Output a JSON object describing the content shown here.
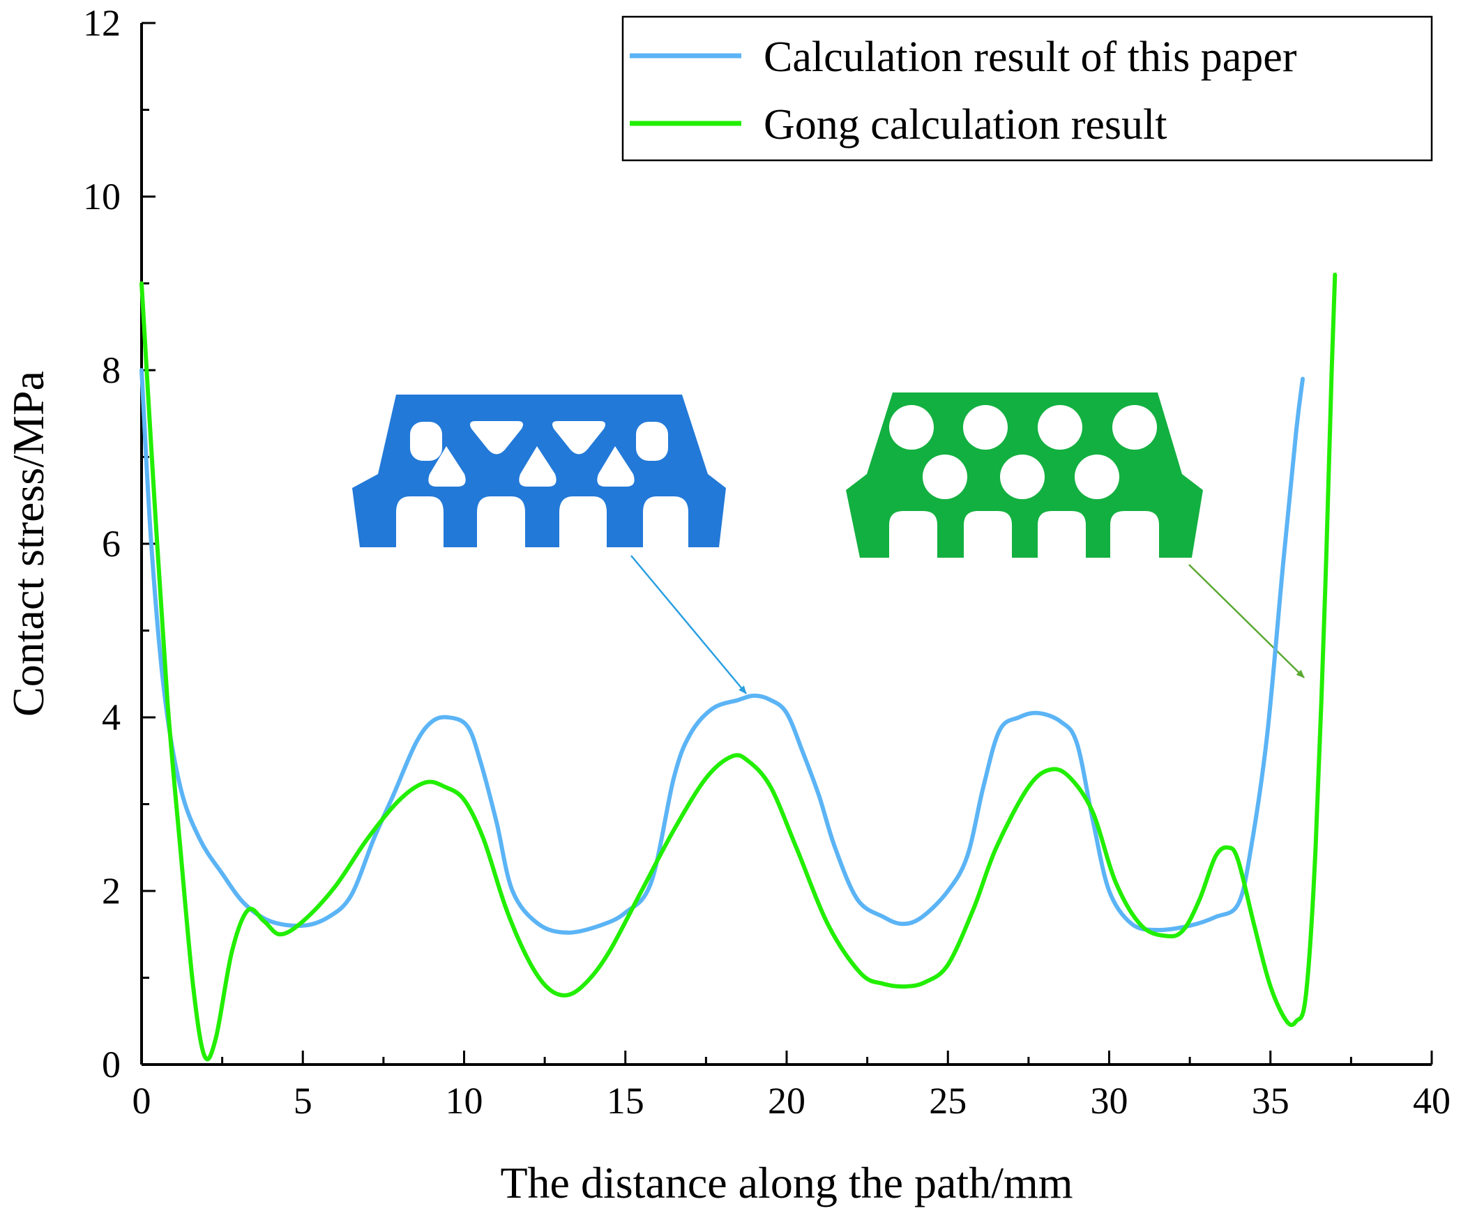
{
  "chart_data": {
    "type": "line",
    "title": "",
    "xlabel": "The distance along the path/mm",
    "ylabel": "Contact stress/MPa",
    "xlim": [
      0,
      40
    ],
    "ylim": [
      0,
      12
    ],
    "x_ticks": [
      0,
      5,
      10,
      15,
      20,
      25,
      30,
      35,
      40
    ],
    "y_ticks": [
      0,
      2,
      4,
      6,
      8,
      10,
      12
    ],
    "x_tick_labels": [
      "0",
      "5",
      "10",
      "15",
      "20",
      "25",
      "30",
      "35",
      "40"
    ],
    "y_tick_labels": [
      "0",
      "2",
      "4",
      "6",
      "8",
      "10",
      "12"
    ],
    "grid": false,
    "legend_position": "top-right",
    "series": [
      {
        "name": "Calculation result of this paper",
        "color": "#5bb4f5",
        "points": [
          [
            0,
            8.0
          ],
          [
            0.3,
            6.0
          ],
          [
            0.7,
            4.3
          ],
          [
            1.2,
            3.2
          ],
          [
            1.8,
            2.6
          ],
          [
            2.5,
            2.2
          ],
          [
            3.2,
            1.85
          ],
          [
            4.0,
            1.65
          ],
          [
            5.0,
            1.6
          ],
          [
            5.8,
            1.7
          ],
          [
            6.5,
            1.95
          ],
          [
            7.2,
            2.6
          ],
          [
            7.8,
            3.1
          ],
          [
            8.5,
            3.7
          ],
          [
            9.0,
            3.95
          ],
          [
            9.5,
            4.0
          ],
          [
            10.1,
            3.9
          ],
          [
            10.5,
            3.5
          ],
          [
            11.0,
            2.8
          ],
          [
            11.5,
            2.0
          ],
          [
            12.3,
            1.62
          ],
          [
            13.2,
            1.52
          ],
          [
            14.2,
            1.6
          ],
          [
            15.0,
            1.75
          ],
          [
            15.8,
            2.1
          ],
          [
            16.5,
            3.3
          ],
          [
            17.0,
            3.8
          ],
          [
            17.7,
            4.1
          ],
          [
            18.5,
            4.2
          ],
          [
            19.0,
            4.25
          ],
          [
            19.5,
            4.2
          ],
          [
            20.0,
            4.05
          ],
          [
            20.5,
            3.6
          ],
          [
            21.0,
            3.1
          ],
          [
            21.5,
            2.5
          ],
          [
            22.2,
            1.9
          ],
          [
            23.0,
            1.7
          ],
          [
            23.6,
            1.62
          ],
          [
            24.2,
            1.7
          ],
          [
            25.0,
            2.0
          ],
          [
            25.6,
            2.4
          ],
          [
            26.1,
            3.2
          ],
          [
            26.6,
            3.85
          ],
          [
            27.2,
            4.0
          ],
          [
            27.8,
            4.05
          ],
          [
            28.5,
            3.95
          ],
          [
            29.0,
            3.7
          ],
          [
            29.5,
            2.8
          ],
          [
            30.0,
            2.0
          ],
          [
            30.7,
            1.62
          ],
          [
            31.5,
            1.55
          ],
          [
            32.5,
            1.6
          ],
          [
            33.3,
            1.7
          ],
          [
            34.0,
            1.85
          ],
          [
            34.4,
            2.5
          ],
          [
            34.9,
            3.8
          ],
          [
            35.4,
            5.8
          ],
          [
            35.8,
            7.3
          ],
          [
            36.0,
            7.9
          ]
        ]
      },
      {
        "name": "Gong calculation result",
        "color": "#22ee00",
        "points": [
          [
            0,
            9.0
          ],
          [
            0.4,
            6.5
          ],
          [
            0.8,
            4.2
          ],
          [
            1.2,
            2.5
          ],
          [
            1.6,
            0.9
          ],
          [
            1.95,
            0.1
          ],
          [
            2.3,
            0.3
          ],
          [
            2.8,
            1.3
          ],
          [
            3.3,
            1.78
          ],
          [
            3.8,
            1.65
          ],
          [
            4.3,
            1.5
          ],
          [
            5.0,
            1.65
          ],
          [
            6.0,
            2.05
          ],
          [
            7.0,
            2.6
          ],
          [
            8.0,
            3.05
          ],
          [
            8.8,
            3.25
          ],
          [
            9.4,
            3.2
          ],
          [
            10.0,
            3.05
          ],
          [
            10.6,
            2.6
          ],
          [
            11.3,
            1.8
          ],
          [
            12.0,
            1.2
          ],
          [
            12.6,
            0.88
          ],
          [
            13.2,
            0.8
          ],
          [
            13.8,
            0.95
          ],
          [
            14.5,
            1.3
          ],
          [
            15.5,
            2.0
          ],
          [
            16.5,
            2.7
          ],
          [
            17.5,
            3.3
          ],
          [
            18.3,
            3.55
          ],
          [
            18.8,
            3.5
          ],
          [
            19.5,
            3.2
          ],
          [
            20.3,
            2.5
          ],
          [
            21.3,
            1.6
          ],
          [
            22.3,
            1.05
          ],
          [
            23.0,
            0.93
          ],
          [
            23.7,
            0.9
          ],
          [
            24.3,
            0.95
          ],
          [
            25.0,
            1.15
          ],
          [
            25.8,
            1.8
          ],
          [
            26.5,
            2.5
          ],
          [
            27.5,
            3.2
          ],
          [
            28.2,
            3.4
          ],
          [
            28.8,
            3.3
          ],
          [
            29.5,
            2.9
          ],
          [
            30.2,
            2.1
          ],
          [
            31.0,
            1.6
          ],
          [
            31.8,
            1.48
          ],
          [
            32.3,
            1.55
          ],
          [
            32.8,
            1.9
          ],
          [
            33.3,
            2.4
          ],
          [
            33.7,
            2.5
          ],
          [
            34.0,
            2.35
          ],
          [
            34.5,
            1.6
          ],
          [
            35.0,
            0.9
          ],
          [
            35.5,
            0.5
          ],
          [
            35.8,
            0.5
          ],
          [
            36.1,
            0.8
          ],
          [
            36.4,
            2.5
          ],
          [
            36.7,
            5.5
          ],
          [
            36.9,
            8.0
          ],
          [
            37.0,
            9.1
          ]
        ]
      }
    ],
    "annotations": [
      {
        "name": "Blue honeycomb (triangular holes) section",
        "color": "#2279d8",
        "arrow_to": [
          19.0,
          4.22
        ]
      },
      {
        "name": "Green honeycomb (circular holes) section",
        "color": "#12b040",
        "arrow_to": [
          36.0,
          4.4
        ]
      }
    ]
  }
}
